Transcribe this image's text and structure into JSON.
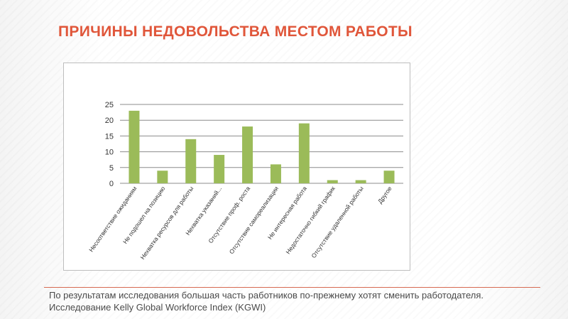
{
  "slide": {
    "title": "ПРИЧИНЫ НЕДОВОЛЬСТВА МЕСТОМ РАБОТЫ",
    "caption": "По результатам исследования большая часть работников по-прежнему хотят сменить работодателя. Исследование Kelly Global Workforce Index (KGWI)"
  },
  "colors": {
    "title": "#e0563a",
    "bar": "#9bbb59",
    "grid": "#8c8c8c",
    "divider": "#d66a52"
  },
  "chart_data": {
    "type": "bar",
    "title": "",
    "xlabel": "",
    "ylabel": "",
    "ylim": [
      0,
      25
    ],
    "yticks": [
      0,
      5,
      10,
      15,
      20,
      25
    ],
    "grid": true,
    "legend": "none",
    "categories": [
      "Несоответствие ожиданиям",
      "Не подошел на позицию",
      "Нехватка ресурсов для работы",
      "Нехватка указаний...",
      "Отсутствие проф. роста",
      "Отсутствие самореализации",
      "Не интересная работа",
      "Недостаточно гибкий график",
      "Отсутствие удаленной работы",
      "Другое"
    ],
    "values": [
      23,
      4,
      14,
      9,
      18,
      6,
      19,
      1,
      1,
      4
    ]
  }
}
